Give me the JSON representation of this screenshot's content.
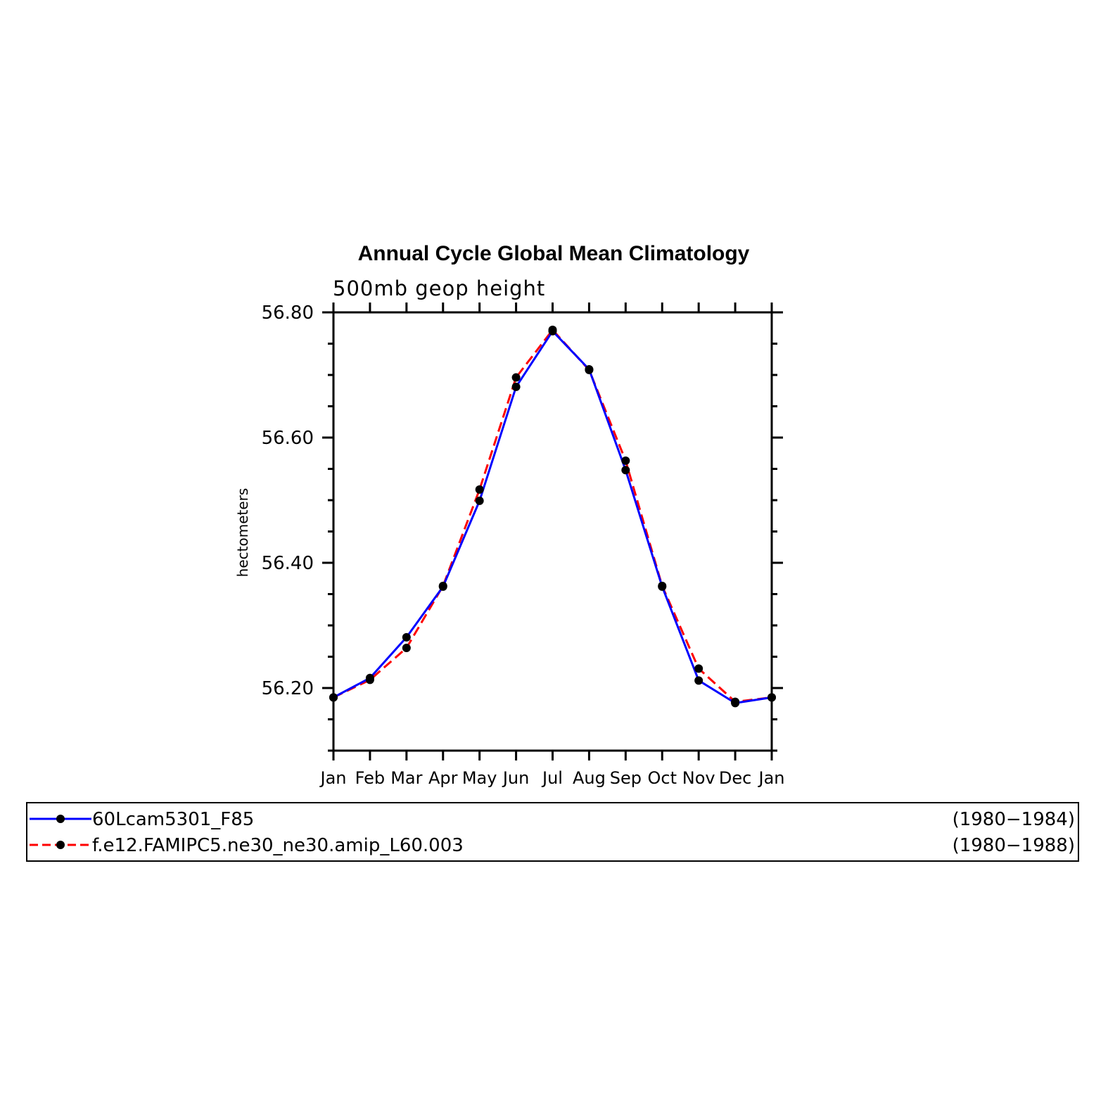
{
  "chart_data": {
    "type": "line",
    "title": "Annual Cycle Global Mean Climatology",
    "subtitle": "500mb geop height",
    "xlabel": "",
    "ylabel": "hectometers",
    "categories": [
      "Jan",
      "Feb",
      "Mar",
      "Apr",
      "May",
      "Jun",
      "Jul",
      "Aug",
      "Sep",
      "Oct",
      "Nov",
      "Dec",
      "Jan"
    ],
    "ylim": [
      56.1,
      56.8
    ],
    "yticks": [
      "56.20",
      "56.40",
      "56.60",
      "56.80"
    ],
    "grid": false,
    "legend_position": "bottom",
    "series": [
      {
        "name": "60Lcam5301_F85",
        "period": "(1980−1984)",
        "color": "#0000ff",
        "style": "solid",
        "values": [
          56.185,
          56.216,
          56.281,
          56.362,
          56.499,
          56.681,
          56.77,
          56.709,
          56.548,
          56.362,
          56.212,
          56.176,
          56.185
        ]
      },
      {
        "name": "f.e12.FAMIPC5.ne30_ne30.amip_L60.003",
        "period": "(1980−1988)",
        "color": "#ff0000",
        "style": "dashed",
        "values": [
          56.185,
          56.213,
          56.264,
          56.363,
          56.517,
          56.696,
          56.772,
          56.708,
          56.563,
          56.363,
          56.231,
          56.178,
          56.185
        ]
      }
    ]
  }
}
